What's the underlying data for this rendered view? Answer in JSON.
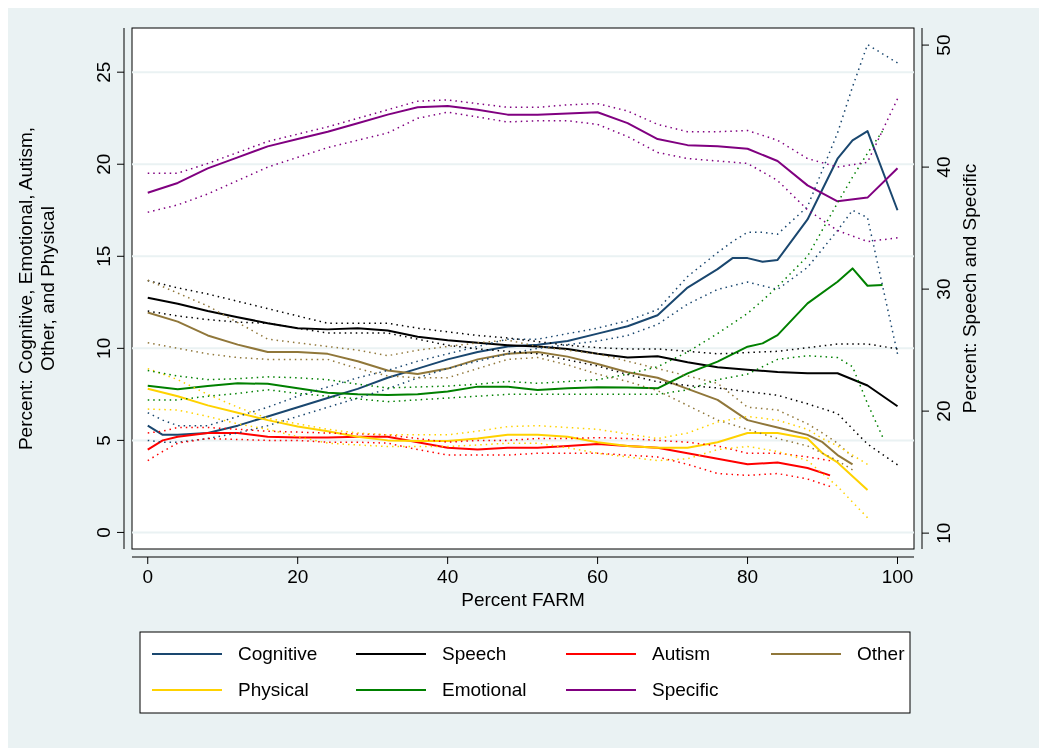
{
  "chart_data": {
    "type": "line",
    "xlabel": "Percent FARM",
    "ylabel": "Percent: Cognitive, Emotional, Autism, Other, and Physical",
    "y2label": "Percent: Speech and Specific",
    "xlim": [
      -2.1,
      102.2
    ],
    "xticks": [
      0,
      20,
      40,
      60,
      80,
      100
    ],
    "ylim": [
      -0.9,
      27.4
    ],
    "yticks": [
      0,
      5,
      10,
      15,
      20,
      25
    ],
    "y2lim": [
      8.7,
      51.4
    ],
    "y2ticks": [
      10,
      20,
      30,
      40,
      50
    ],
    "grid": "y",
    "legend": "bottom",
    "line_style": "solid",
    "series": [
      {
        "name": "Cognitive",
        "color": "#1a476f",
        "x": [
          0,
          2,
          4,
          8,
          12,
          16,
          20,
          24,
          28,
          32,
          36,
          40,
          44,
          48,
          52,
          56,
          60,
          64,
          68,
          72,
          76,
          78,
          80,
          82,
          84,
          88,
          92,
          94,
          96,
          100
        ],
        "values": [
          5.8,
          5.3,
          5.3,
          5.4,
          5.8,
          6.3,
          6.8,
          7.3,
          7.8,
          8.4,
          8.9,
          9.4,
          9.8,
          10.1,
          10.2,
          10.4,
          10.8,
          11.2,
          11.8,
          13.3,
          14.3,
          14.9,
          14.9,
          14.7,
          14.8,
          17.0,
          20.3,
          21.3,
          21.8,
          17.5
        ]
      },
      {
        "name": "Speech",
        "color": "#000000",
        "axis": "y2",
        "x": [
          0,
          4,
          8,
          12,
          16,
          20,
          24,
          28,
          32,
          36,
          40,
          44,
          48,
          52,
          56,
          60,
          64,
          68,
          72,
          76,
          80,
          84,
          88,
          92,
          96,
          100
        ],
        "values": [
          29.3,
          28.8,
          28.2,
          27.7,
          27.2,
          26.8,
          26.7,
          26.8,
          26.6,
          26.1,
          25.8,
          25.6,
          25.4,
          25.3,
          25.1,
          24.7,
          24.4,
          24.5,
          24.0,
          23.6,
          23.4,
          23.2,
          23.1,
          23.1,
          22.1,
          20.4
        ]
      },
      {
        "name": "Autism",
        "color": "#ff0000",
        "x": [
          0,
          2,
          4,
          8,
          12,
          16,
          20,
          24,
          28,
          32,
          36,
          40,
          44,
          48,
          52,
          56,
          60,
          64,
          68,
          72,
          76,
          80,
          84,
          88,
          91
        ],
        "values": [
          4.5,
          5.0,
          5.2,
          5.4,
          5.4,
          5.2,
          5.15,
          5.15,
          5.2,
          5.2,
          4.9,
          4.6,
          4.5,
          4.6,
          4.6,
          4.7,
          4.8,
          4.7,
          4.6,
          4.3,
          4.0,
          3.7,
          3.8,
          3.5,
          3.1
        ]
      },
      {
        "name": "Other",
        "color": "#90773a",
        "x": [
          0,
          4,
          8,
          12,
          16,
          20,
          24,
          28,
          32,
          36,
          40,
          44,
          48,
          52,
          56,
          60,
          64,
          68,
          72,
          76,
          80,
          84,
          88,
          90,
          92,
          94
        ],
        "values": [
          11.95,
          11.45,
          10.7,
          10.2,
          9.8,
          9.8,
          9.7,
          9.3,
          8.8,
          8.6,
          8.9,
          9.4,
          9.7,
          9.8,
          9.55,
          9.15,
          8.7,
          8.4,
          7.8,
          7.2,
          6.1,
          5.7,
          5.3,
          4.9,
          4.2,
          3.7
        ]
      },
      {
        "name": "Physical",
        "color": "#ffd200",
        "x": [
          0,
          4,
          8,
          12,
          16,
          20,
          24,
          28,
          32,
          36,
          40,
          44,
          48,
          52,
          56,
          60,
          64,
          68,
          72,
          76,
          80,
          84,
          88,
          90,
          92,
          96
        ],
        "values": [
          7.8,
          7.4,
          6.9,
          6.5,
          6.1,
          5.75,
          5.5,
          5.2,
          5.0,
          4.97,
          4.97,
          5.1,
          5.3,
          5.3,
          5.2,
          4.9,
          4.7,
          4.6,
          4.6,
          4.9,
          5.4,
          5.4,
          5.1,
          4.3,
          3.8,
          2.3
        ]
      },
      {
        "name": "Emotional",
        "color": "#008000",
        "x": [
          0,
          4,
          8,
          12,
          16,
          20,
          24,
          28,
          32,
          36,
          40,
          44,
          48,
          52,
          56,
          60,
          64,
          68,
          72,
          76,
          80,
          82,
          84,
          88,
          92,
          94,
          96,
          98
        ],
        "values": [
          7.97,
          7.78,
          7.96,
          8.1,
          8.07,
          7.83,
          7.59,
          7.5,
          7.47,
          7.5,
          7.65,
          7.92,
          7.92,
          7.74,
          7.83,
          7.88,
          7.87,
          7.83,
          8.64,
          9.28,
          10.09,
          10.27,
          10.72,
          12.44,
          13.62,
          14.34,
          13.4,
          13.44
        ]
      },
      {
        "name": "Specific",
        "color": "#800080",
        "axis": "y2",
        "x": [
          0,
          4,
          8,
          12,
          16,
          20,
          24,
          28,
          32,
          36,
          40,
          44,
          48,
          52,
          56,
          60,
          64,
          68,
          72,
          76,
          80,
          84,
          88,
          92,
          96,
          100
        ],
        "values": [
          37.9,
          38.7,
          39.9,
          40.8,
          41.7,
          42.3,
          42.9,
          43.6,
          44.3,
          44.9,
          45.0,
          44.7,
          44.3,
          44.3,
          44.4,
          44.5,
          43.6,
          42.3,
          41.8,
          41.7,
          41.5,
          40.5,
          38.5,
          37.2,
          37.5,
          39.9
        ]
      },
      {
        "color": "#1a476f",
        "line_style": "dotted",
        "x": [
          0,
          2,
          4,
          8,
          12,
          16,
          20,
          24,
          28,
          32,
          36,
          40,
          44,
          48,
          52,
          56,
          60,
          64,
          68,
          72,
          76,
          78,
          80,
          82,
          84,
          88,
          92,
          94,
          96,
          100
        ],
        "values": [
          6.5,
          6.1,
          5.8,
          5.8,
          6.3,
          6.8,
          7.4,
          7.9,
          8.4,
          8.8,
          9.3,
          9.7,
          10.1,
          10.5,
          10.5,
          10.8,
          11.1,
          11.5,
          12.1,
          13.9,
          15.2,
          15.8,
          16.3,
          16.3,
          16.2,
          17.7,
          21.7,
          24.2,
          26.5,
          25.5
        ]
      },
      {
        "color": "#1a476f",
        "line_style": "dotted",
        "x": [
          0,
          2,
          4,
          8,
          12,
          16,
          20,
          24,
          28,
          32,
          36,
          40,
          44,
          48,
          52,
          56,
          60,
          64,
          68,
          72,
          76,
          78,
          80,
          82,
          84,
          88,
          92,
          94,
          96,
          100
        ],
        "values": [
          5.0,
          4.9,
          4.9,
          5.1,
          5.4,
          5.8,
          6.3,
          6.8,
          7.3,
          7.8,
          8.4,
          8.9,
          9.3,
          9.7,
          10.0,
          10.2,
          10.4,
          10.7,
          11.3,
          12.4,
          13.2,
          13.4,
          13.6,
          13.4,
          13.2,
          14.4,
          16.4,
          17.5,
          17.1,
          9.7
        ]
      },
      {
        "color": "#000000",
        "axis": "y2",
        "line_style": "dotted",
        "x": [
          0,
          4,
          8,
          12,
          16,
          20,
          24,
          28,
          32,
          36,
          40,
          44,
          48,
          52,
          56,
          60,
          64,
          68,
          72,
          76,
          80,
          84,
          88,
          92,
          96,
          100
        ],
        "values": [
          30.7,
          30.1,
          29.6,
          29.0,
          28.4,
          27.8,
          27.2,
          27.2,
          27.2,
          26.8,
          26.5,
          26.2,
          26.0,
          25.7,
          25.4,
          25.2,
          25.1,
          25.1,
          24.9,
          24.7,
          24.8,
          24.9,
          25.2,
          25.5,
          25.5,
          25.1
        ]
      },
      {
        "color": "#000000",
        "axis": "y2",
        "line_style": "dotted",
        "x": [
          0,
          4,
          8,
          12,
          16,
          20,
          24,
          28,
          32,
          36,
          40,
          44,
          48,
          52,
          56,
          60,
          64,
          68,
          72,
          76,
          80,
          84,
          88,
          92,
          96,
          100
        ],
        "values": [
          28.2,
          27.8,
          27.5,
          27.3,
          27.2,
          26.8,
          26.4,
          26.4,
          26.4,
          25.9,
          25.4,
          25.1,
          24.9,
          24.7,
          24.2,
          23.7,
          23.0,
          22.4,
          22.1,
          21.9,
          21.6,
          21.3,
          20.6,
          19.8,
          17.3,
          15.6
        ]
      },
      {
        "color": "#ff0000",
        "line_style": "dotted",
        "x": [
          0,
          2,
          4,
          8,
          12,
          16,
          20,
          24,
          28,
          32,
          36,
          40,
          44,
          48,
          52,
          56,
          60,
          64,
          68,
          72,
          76,
          80,
          84,
          88,
          91
        ],
        "values": [
          5.4,
          5.5,
          5.7,
          5.7,
          5.6,
          5.5,
          5.45,
          5.4,
          5.35,
          5.3,
          5.1,
          4.9,
          5.0,
          5.0,
          5.1,
          5.1,
          5.15,
          5.1,
          5.0,
          4.9,
          4.7,
          4.3,
          4.3,
          4.1,
          3.9
        ]
      },
      {
        "color": "#ff0000",
        "line_style": "dotted",
        "x": [
          0,
          2,
          4,
          8,
          12,
          16,
          20,
          24,
          28,
          32,
          36,
          40,
          44,
          48,
          52,
          56,
          60,
          64,
          68,
          72,
          76,
          80,
          84,
          88,
          91
        ],
        "values": [
          3.9,
          4.4,
          4.85,
          5.1,
          5.05,
          5.0,
          5.0,
          4.9,
          4.9,
          4.85,
          4.5,
          4.2,
          4.2,
          4.2,
          4.3,
          4.3,
          4.3,
          4.2,
          4.1,
          3.7,
          3.2,
          3.1,
          3.2,
          2.9,
          2.5
        ]
      },
      {
        "color": "#90773a",
        "line_style": "dotted",
        "x": [
          0,
          4,
          8,
          12,
          16,
          20,
          24,
          28,
          32,
          36,
          40,
          44,
          48,
          52,
          56,
          60,
          64,
          68,
          72,
          76,
          80,
          84,
          88,
          90,
          92,
          94
        ],
        "values": [
          13.7,
          13.0,
          12.3,
          11.4,
          10.5,
          10.3,
          10.1,
          9.9,
          9.6,
          9.9,
          10.1,
          10.3,
          10.45,
          10.1,
          9.9,
          9.7,
          9.3,
          8.9,
          8.5,
          8.1,
          6.8,
          6.65,
          5.9,
          5.4,
          4.85,
          4.1
        ]
      },
      {
        "color": "#90773a",
        "line_style": "dotted",
        "x": [
          0,
          4,
          8,
          12,
          16,
          20,
          24,
          28,
          32,
          36,
          40,
          44,
          48,
          52,
          56,
          60,
          64,
          68,
          72,
          76,
          80,
          84,
          88,
          90,
          92,
          94
        ],
        "values": [
          10.3,
          10.0,
          9.7,
          9.5,
          9.4,
          9.4,
          9.4,
          8.9,
          8.5,
          8.4,
          8.4,
          8.9,
          9.4,
          9.5,
          9.1,
          8.6,
          8.2,
          7.7,
          6.9,
          6.1,
          5.6,
          5.1,
          4.7,
          4.3,
          3.9,
          3.4
        ]
      },
      {
        "color": "#ffd200",
        "line_style": "dotted",
        "x": [
          0,
          4,
          8,
          12,
          16,
          20,
          24,
          28,
          32,
          36,
          40,
          44,
          48,
          52,
          56,
          60,
          64,
          68,
          72,
          76,
          80,
          84,
          88,
          90,
          92,
          96
        ],
        "values": [
          8.9,
          8.3,
          7.5,
          6.8,
          6.2,
          5.9,
          5.6,
          5.4,
          5.3,
          5.3,
          5.3,
          5.5,
          5.75,
          5.8,
          5.7,
          5.6,
          5.35,
          5.1,
          5.4,
          6.0,
          6.3,
          6.1,
          5.6,
          5.1,
          4.7,
          3.7
        ]
      },
      {
        "color": "#ffd200",
        "line_style": "dotted",
        "x": [
          0,
          4,
          8,
          12,
          16,
          20,
          24,
          28,
          32,
          36,
          40,
          44,
          48,
          52,
          56,
          60,
          64,
          68,
          72,
          76,
          80,
          84,
          88,
          90,
          92,
          96
        ],
        "values": [
          6.7,
          6.65,
          6.3,
          5.9,
          5.6,
          5.2,
          4.85,
          4.75,
          4.67,
          4.67,
          4.67,
          4.75,
          4.85,
          4.85,
          4.6,
          4.3,
          4.1,
          3.9,
          4.0,
          4.5,
          4.67,
          4.4,
          3.9,
          3.2,
          2.5,
          0.8
        ]
      },
      {
        "color": "#008000",
        "line_style": "dotted",
        "x": [
          0,
          4,
          8,
          12,
          16,
          20,
          24,
          28,
          32,
          36,
          40,
          44,
          48,
          52,
          56,
          60,
          64,
          68,
          72,
          76,
          80,
          82,
          84,
          88,
          92,
          94,
          96,
          98
        ],
        "values": [
          8.8,
          8.5,
          8.3,
          8.35,
          8.45,
          8.4,
          8.3,
          8.05,
          7.85,
          7.9,
          7.95,
          8.05,
          8.2,
          8.1,
          8.2,
          8.3,
          8.6,
          9.0,
          9.8,
          10.8,
          11.9,
          12.6,
          13.35,
          15.0,
          17.9,
          19.3,
          20.6,
          21.8
        ]
      },
      {
        "color": "#008000",
        "line_style": "dotted",
        "x": [
          0,
          4,
          8,
          12,
          16,
          20,
          24,
          28,
          32,
          36,
          40,
          44,
          48,
          52,
          56,
          60,
          64,
          68,
          72,
          76,
          80,
          82,
          84,
          88,
          92,
          94,
          96,
          98
        ],
        "values": [
          7.2,
          7.2,
          7.4,
          7.55,
          7.75,
          7.55,
          7.4,
          7.25,
          7.1,
          7.2,
          7.3,
          7.4,
          7.5,
          7.5,
          7.5,
          7.5,
          7.5,
          7.5,
          7.75,
          8.3,
          8.6,
          9.0,
          9.4,
          9.6,
          9.5,
          9.0,
          7.0,
          5.2
        ]
      },
      {
        "color": "#800080",
        "axis": "y2",
        "line_style": "dotted",
        "x": [
          0,
          4,
          8,
          12,
          16,
          20,
          24,
          28,
          32,
          36,
          40,
          44,
          48,
          52,
          56,
          60,
          64,
          68,
          72,
          76,
          80,
          84,
          88,
          92,
          96,
          100
        ],
        "values": [
          39.5,
          39.5,
          40.3,
          41.2,
          42.1,
          42.7,
          43.3,
          44.0,
          44.7,
          45.4,
          45.5,
          45.2,
          44.9,
          44.9,
          45.1,
          45.2,
          44.6,
          43.5,
          42.9,
          42.9,
          43.0,
          42.2,
          40.7,
          40.0,
          40.4,
          45.6
        ]
      },
      {
        "color": "#800080",
        "axis": "y2",
        "line_style": "dotted",
        "x": [
          0,
          4,
          8,
          12,
          16,
          20,
          24,
          28,
          32,
          36,
          40,
          44,
          48,
          52,
          56,
          60,
          64,
          68,
          72,
          76,
          80,
          84,
          88,
          92,
          96,
          100
        ],
        "values": [
          36.3,
          36.9,
          37.8,
          38.9,
          40.0,
          40.8,
          41.6,
          42.2,
          42.8,
          44.0,
          44.5,
          44.1,
          43.7,
          43.8,
          43.8,
          43.5,
          42.5,
          41.2,
          40.7,
          40.5,
          40.3,
          38.9,
          36.5,
          34.8,
          33.9,
          34.2
        ]
      }
    ]
  }
}
